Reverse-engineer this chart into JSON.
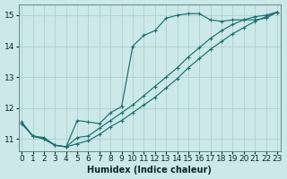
{
  "xlabel": "Humidex (Indice chaleur)",
  "bg_color": "#cce8e8",
  "grid_color": "#b0d0d0",
  "line_color": "#1a7070",
  "xlim": [
    -0.3,
    23.3
  ],
  "ylim": [
    10.6,
    15.35
  ],
  "xticks": [
    0,
    1,
    2,
    3,
    4,
    5,
    6,
    7,
    8,
    9,
    10,
    11,
    12,
    13,
    14,
    15,
    16,
    17,
    18,
    19,
    20,
    21,
    22,
    23
  ],
  "yticks": [
    11,
    12,
    13,
    14,
    15
  ],
  "lines": [
    {
      "x": [
        0,
        1,
        2,
        3,
        4,
        5,
        6,
        7,
        8,
        9,
        10,
        11,
        12,
        13,
        14,
        15,
        16,
        17,
        18,
        19,
        20,
        21,
        22,
        23
      ],
      "y": [
        11.55,
        11.1,
        11.05,
        10.8,
        10.75,
        11.6,
        11.55,
        11.5,
        11.85,
        12.05,
        14.0,
        14.35,
        14.5,
        14.9,
        15.0,
        15.05,
        15.05,
        14.85,
        14.8,
        14.85,
        14.85,
        14.85,
        14.9,
        15.1
      ]
    },
    {
      "x": [
        0,
        1,
        2,
        3,
        4,
        5,
        6,
        7,
        8,
        9,
        10,
        11,
        12,
        13,
        14,
        15,
        16,
        17,
        18,
        19,
        20,
        21,
        22,
        23
      ],
      "y": [
        11.5,
        11.1,
        11.0,
        10.8,
        10.75,
        11.05,
        11.1,
        11.35,
        11.6,
        11.85,
        12.1,
        12.4,
        12.7,
        13.0,
        13.3,
        13.65,
        13.95,
        14.25,
        14.5,
        14.7,
        14.85,
        14.95,
        15.0,
        15.1
      ]
    },
    {
      "x": [
        0,
        1,
        2,
        3,
        4,
        5,
        6,
        7,
        8,
        9,
        10,
        11,
        12,
        13,
        14,
        15,
        16,
        17,
        18,
        19,
        20,
        21,
        22,
        23
      ],
      "y": [
        11.5,
        11.1,
        11.0,
        10.8,
        10.75,
        10.85,
        10.95,
        11.15,
        11.4,
        11.6,
        11.85,
        12.1,
        12.35,
        12.65,
        12.95,
        13.3,
        13.6,
        13.9,
        14.15,
        14.4,
        14.6,
        14.8,
        14.95,
        15.1
      ]
    }
  ],
  "xlabel_fontsize": 7,
  "tick_fontsize": 6.5
}
